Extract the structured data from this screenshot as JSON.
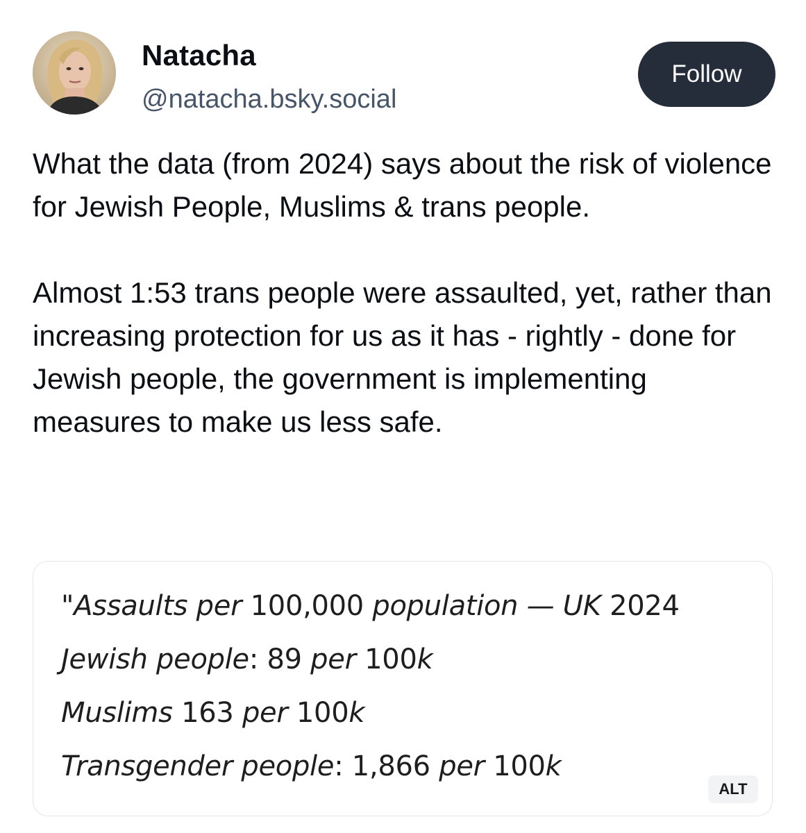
{
  "author": {
    "display_name": "Natacha",
    "handle": "@natacha.bsky.social",
    "avatar_icon": "avatar-photo"
  },
  "actions": {
    "follow_label": "Follow"
  },
  "post": {
    "paragraphs": [
      "What the data (from 2024) says about the risk of violence for Jewish People, Muslims & trans people.",
      "Almost 1:53 trans people were assaulted, yet, rather than increasing protection for us as it has - rightly - done for Jewish people, the government is implementing measures to make us less safe."
    ]
  },
  "embed": {
    "title_prefix": "\"",
    "title_italic_1": "Assaults per",
    "title_num": "100,000",
    "title_italic_2": "population — UK",
    "title_year": "2024",
    "rows": [
      {
        "label": "Jewish people",
        "sep": ":",
        "value": "89",
        "per": "per",
        "unit_num": "100",
        "unit_k": "k"
      },
      {
        "label": "Muslims",
        "sep": "",
        "value": "163",
        "per": "per",
        "unit_num": "100",
        "unit_k": "k"
      },
      {
        "label": "Transgender people",
        "sep": ":",
        "value": "1,866",
        "per": "per",
        "unit_num": "100",
        "unit_k": "k"
      }
    ],
    "alt_badge": "ALT"
  },
  "colors": {
    "follow_bg": "#252d3a",
    "handle": "#475569",
    "card_border": "#e3e6ea"
  }
}
